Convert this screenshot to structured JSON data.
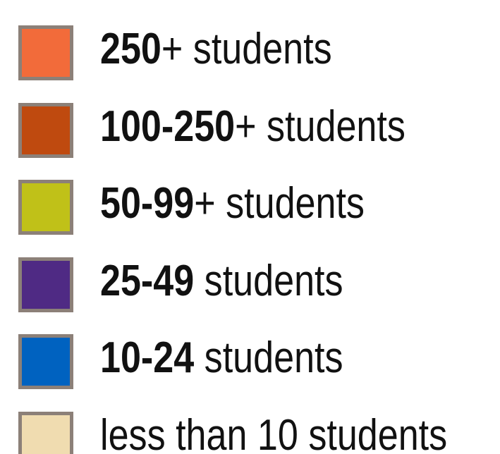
{
  "legend": {
    "items": [
      {
        "bold": "250",
        "text": "+ students",
        "color": "#f26b3a"
      },
      {
        "bold": "100-250",
        "text": "+ students",
        "color": "#bf4a0f"
      },
      {
        "bold": "50-99",
        "text": "+ students",
        "color": "#c0c118"
      },
      {
        "bold": "25-49",
        "text": " students",
        "color": "#4f2a84"
      },
      {
        "bold": "10-24",
        "text": " students",
        "color": "#0062c0"
      },
      {
        "text": "less than 10 students",
        "color": "#f0dcb0"
      }
    ]
  }
}
